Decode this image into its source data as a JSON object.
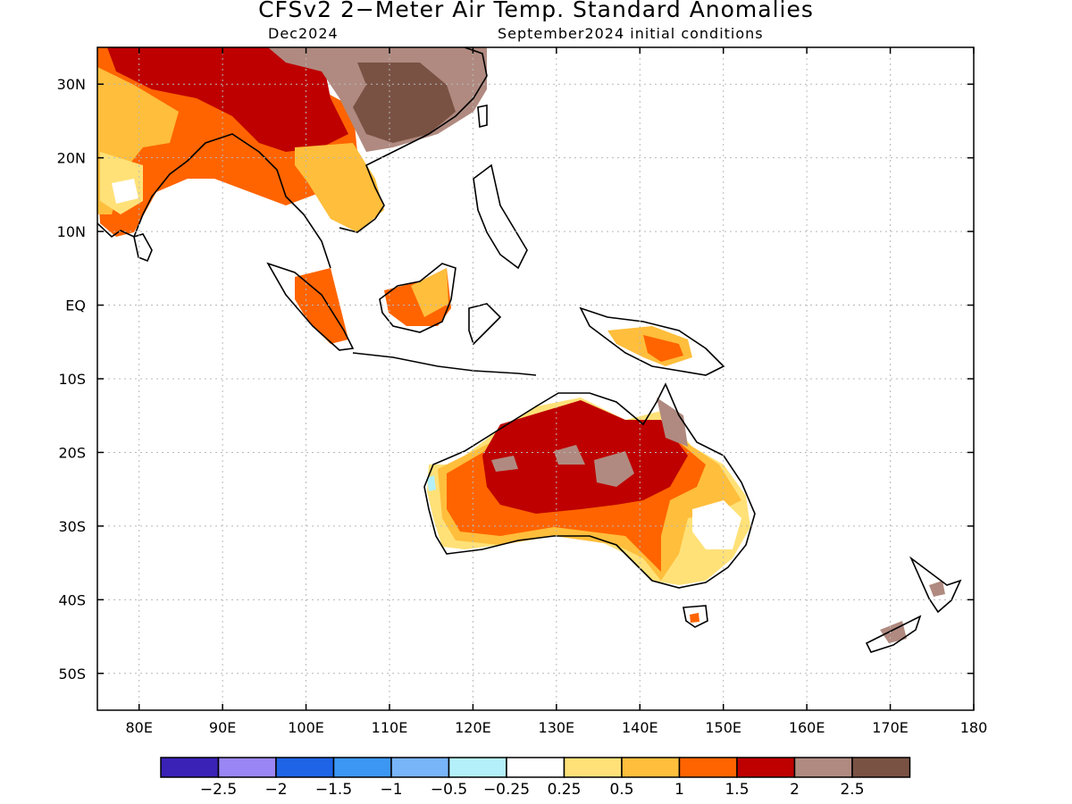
{
  "title": "CFSv2 2−Meter Air Temp. Standard Anomalies",
  "valid_month": "Dec2024",
  "initial_conditions": "September2024 initial conditions",
  "map": {
    "lon_range": [
      75,
      180
    ],
    "lat_range": [
      -55,
      35
    ],
    "lon_ticks": [
      {
        "v": 80,
        "label": "80E"
      },
      {
        "v": 90,
        "label": "90E"
      },
      {
        "v": 100,
        "label": "100E"
      },
      {
        "v": 110,
        "label": "110E"
      },
      {
        "v": 120,
        "label": "120E"
      },
      {
        "v": 130,
        "label": "130E"
      },
      {
        "v": 140,
        "label": "140E"
      },
      {
        "v": 150,
        "label": "150E"
      },
      {
        "v": 160,
        "label": "160E"
      },
      {
        "v": 170,
        "label": "170E"
      },
      {
        "v": 180,
        "label": "180"
      }
    ],
    "lat_ticks": [
      {
        "v": 30,
        "label": "30N"
      },
      {
        "v": 20,
        "label": "20N"
      },
      {
        "v": 10,
        "label": "10N"
      },
      {
        "v": 0,
        "label": "EQ"
      },
      {
        "v": -10,
        "label": "10S"
      },
      {
        "v": -20,
        "label": "20S"
      },
      {
        "v": -30,
        "label": "30S"
      },
      {
        "v": -40,
        "label": "40S"
      },
      {
        "v": -50,
        "label": "50S"
      }
    ],
    "grid": "dotted"
  },
  "legend": {
    "colors": [
      "#3a22b6",
      "#9a86f4",
      "#1e64e6",
      "#3c96f4",
      "#78b4f8",
      "#b4f0fa",
      "#ffffff",
      "#ffe178",
      "#ffbe3c",
      "#ff6400",
      "#be0000",
      "#b08a80",
      "#7a5244"
    ],
    "labels": [
      "−2.5",
      "−2",
      "−1.5",
      "−1",
      "−0.5",
      "−0.25",
      "0.25",
      "0.5",
      "1",
      "1.5",
      "2",
      "2.5"
    ]
  }
}
